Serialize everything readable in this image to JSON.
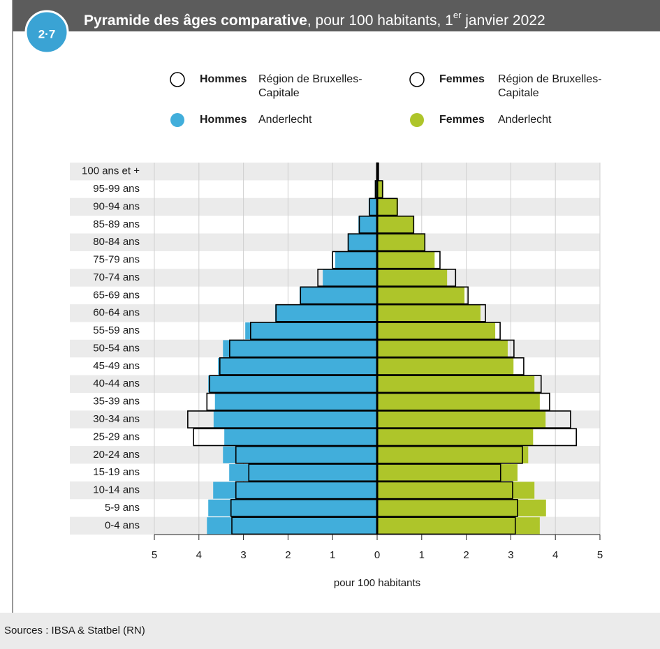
{
  "badge": "2·7",
  "header": {
    "title_bold": "Pyramide des âges comparative",
    "title_rest": ", pour 100 habitants, 1",
    "title_sup": "er",
    "title_end": " janvier 2022"
  },
  "footer": {
    "source": "Sources : IBSA & Statbel (RN)"
  },
  "chart_data": {
    "type": "pyramid",
    "xlabel": "pour 100 habitants",
    "xlim": [
      -5,
      5
    ],
    "xticks": [
      {
        "value": -5,
        "label": "5"
      },
      {
        "value": -4,
        "label": "4"
      },
      {
        "value": -3,
        "label": "3"
      },
      {
        "value": -2,
        "label": "2"
      },
      {
        "value": -1,
        "label": "1"
      },
      0,
      1,
      2,
      3,
      4,
      5
    ],
    "grid": true,
    "categories": [
      "100 ans et +",
      "95-99 ans",
      "90-94 ans",
      "85-89 ans",
      "80-84 ans",
      "75-79 ans",
      "70-74 ans",
      "65-69 ans",
      "60-64 ans",
      "55-59 ans",
      "50-54 ans",
      "45-49 ans",
      "40-44 ans",
      "35-39 ans",
      "30-34 ans",
      "25-29 ans",
      "20-24 ans",
      "15-19 ans",
      "10-14 ans",
      "5-9 ans",
      "0-4 ans"
    ],
    "series": [
      {
        "name": "Hommes",
        "group": "Région de Bruxelles-Capitale",
        "color": "#000000",
        "style": "outline",
        "side": "left",
        "values": [
          0.01,
          0.04,
          0.17,
          0.4,
          0.65,
          1.0,
          1.33,
          1.72,
          2.27,
          2.84,
          3.31,
          3.53,
          3.76,
          3.82,
          4.25,
          4.12,
          3.17,
          2.88,
          3.17,
          3.28,
          3.26
        ]
      },
      {
        "name": "Femmes",
        "group": "Région de Bruxelles-Capitale",
        "color": "#000000",
        "style": "outline",
        "side": "right",
        "values": [
          0.03,
          0.12,
          0.45,
          0.82,
          1.07,
          1.41,
          1.76,
          2.04,
          2.43,
          2.76,
          3.07,
          3.29,
          3.68,
          3.87,
          4.34,
          4.47,
          3.26,
          2.77,
          3.04,
          3.15,
          3.1
        ]
      },
      {
        "name": "Hommes",
        "group": "Anderlecht",
        "color": "#41aedb",
        "style": "filled",
        "side": "left",
        "values": [
          0.02,
          0.05,
          0.19,
          0.42,
          0.66,
          0.94,
          1.22,
          1.74,
          2.29,
          2.96,
          3.46,
          3.57,
          3.79,
          3.64,
          3.67,
          3.43,
          3.46,
          3.32,
          3.68,
          3.79,
          3.82
        ]
      },
      {
        "name": "Femmes",
        "group": "Anderlecht",
        "color": "#aec52a",
        "style": "filled",
        "side": "right",
        "values": [
          0.02,
          0.14,
          0.47,
          0.83,
          1.08,
          1.29,
          1.57,
          1.96,
          2.32,
          2.65,
          2.93,
          3.06,
          3.53,
          3.65,
          3.78,
          3.5,
          3.39,
          3.15,
          3.53,
          3.79,
          3.65
        ]
      }
    ]
  }
}
